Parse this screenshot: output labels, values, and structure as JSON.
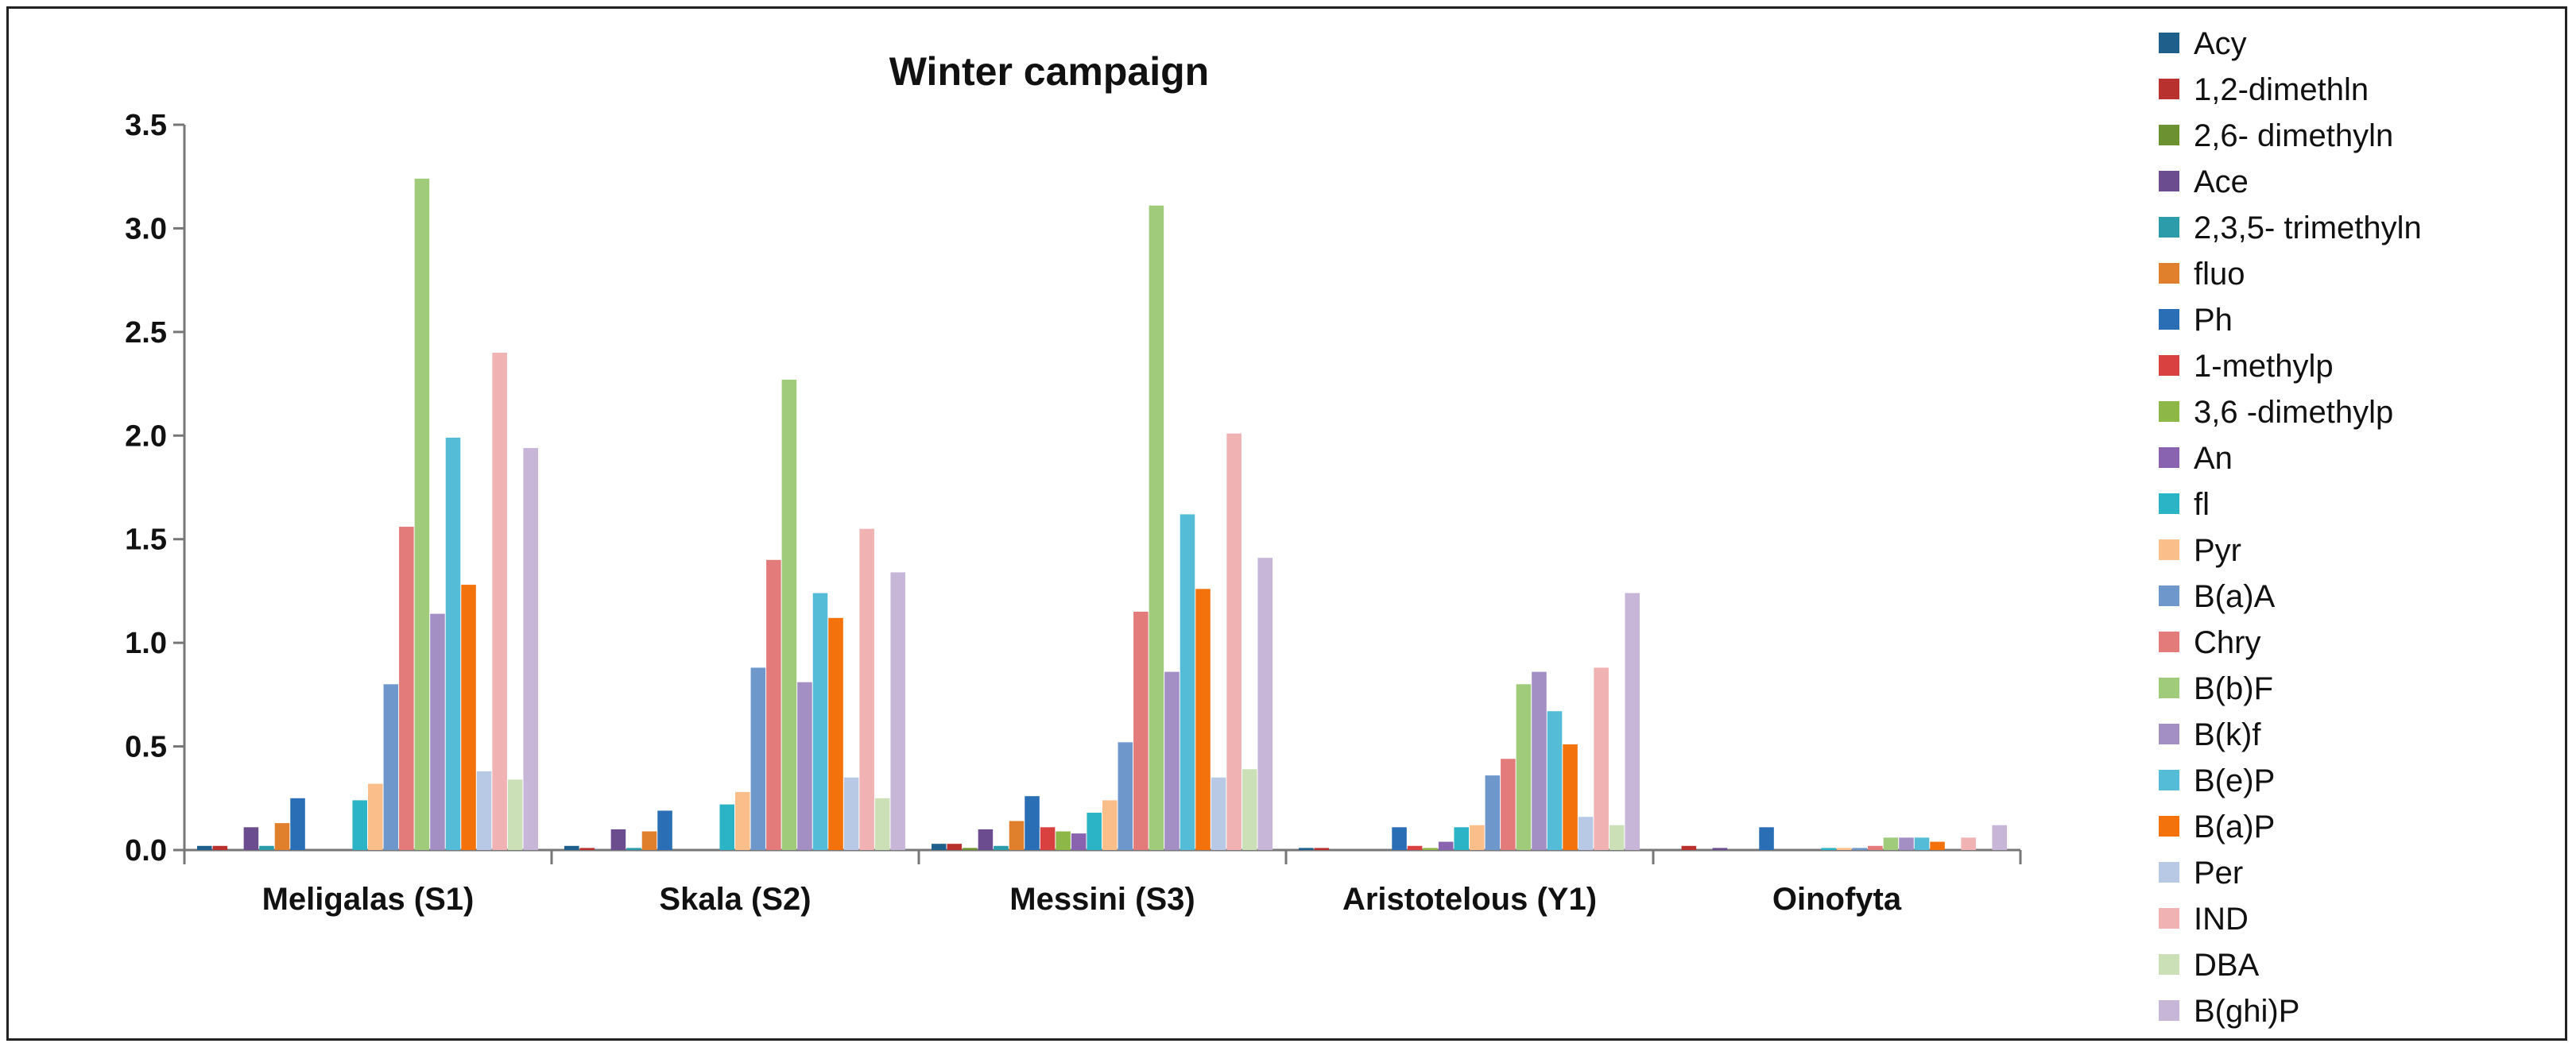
{
  "chart_data": {
    "type": "bar",
    "title": "Winter campaign",
    "xlabel": "",
    "ylabel": "",
    "ylim": [
      0,
      3.5
    ],
    "yticks": [
      "0.0",
      "0.5",
      "1.0",
      "1.5",
      "2.0",
      "2.5",
      "3.0",
      "3.5"
    ],
    "grid": false,
    "legend_position": "right",
    "categories": [
      "Meligalas (S1)",
      "Skala (S2)",
      "Messini (S3)",
      "Aristotelous (Y1)",
      "Oinofyta"
    ],
    "series": [
      {
        "name": "Acy",
        "color": "#1F5F8B",
        "values": [
          0.02,
          0.02,
          0.03,
          0.01,
          0.0
        ]
      },
      {
        "name": "1,2-dimethln",
        "color": "#B8312F",
        "values": [
          0.02,
          0.01,
          0.03,
          0.01,
          0.02
        ]
      },
      {
        "name": "2,6- dimethyln",
        "color": "#6B9130",
        "values": [
          0.0,
          0.0,
          0.01,
          0.0,
          0.0
        ]
      },
      {
        "name": "Ace",
        "color": "#6A4C8F",
        "values": [
          0.11,
          0.1,
          0.1,
          0.0,
          0.01
        ]
      },
      {
        "name": "2,3,5- trimethyln",
        "color": "#2C9BAA",
        "values": [
          0.02,
          0.01,
          0.02,
          0.0,
          0.0
        ]
      },
      {
        "name": "fluo",
        "color": "#E07F2C",
        "values": [
          0.13,
          0.09,
          0.14,
          0.0,
          0.0
        ]
      },
      {
        "name": "Ph",
        "color": "#2A6EB5",
        "values": [
          0.25,
          0.19,
          0.26,
          0.11,
          0.11
        ]
      },
      {
        "name": "1-methylp",
        "color": "#D94040",
        "values": [
          0.0,
          0.0,
          0.11,
          0.02,
          0.0
        ]
      },
      {
        "name": "3,6 -dimethylp",
        "color": "#8DB848",
        "values": [
          0.0,
          0.0,
          0.09,
          0.01,
          0.0
        ]
      },
      {
        "name": "An",
        "color": "#8A63B0",
        "values": [
          0.0,
          0.0,
          0.08,
          0.04,
          0.0
        ]
      },
      {
        "name": "fl",
        "color": "#2BB3C6",
        "values": [
          0.24,
          0.22,
          0.18,
          0.11,
          0.01
        ]
      },
      {
        "name": "Pyr",
        "color": "#F9BE8A",
        "values": [
          0.32,
          0.28,
          0.24,
          0.12,
          0.01
        ]
      },
      {
        "name": "B(a)A",
        "color": "#6E98CC",
        "values": [
          0.8,
          0.88,
          0.52,
          0.36,
          0.01
        ]
      },
      {
        "name": "Chry",
        "color": "#E27B7A",
        "values": [
          1.56,
          1.4,
          1.15,
          0.44,
          0.02
        ]
      },
      {
        "name": "B(b)F",
        "color": "#9FCB7A",
        "values": [
          3.24,
          2.27,
          3.11,
          0.8,
          0.06
        ]
      },
      {
        "name": "B(k)f",
        "color": "#A48FC4",
        "values": [
          1.14,
          0.81,
          0.86,
          0.86,
          0.06
        ]
      },
      {
        "name": "B(e)P",
        "color": "#54BCD6",
        "values": [
          1.99,
          1.24,
          1.62,
          0.67,
          0.06
        ]
      },
      {
        "name": "B(a)P",
        "color": "#F4720C",
        "values": [
          1.28,
          1.12,
          1.26,
          0.51,
          0.04
        ]
      },
      {
        "name": "Per",
        "color": "#B8C9E5",
        "values": [
          0.38,
          0.35,
          0.35,
          0.16,
          0.0
        ]
      },
      {
        "name": "IND",
        "color": "#F0B2B2",
        "values": [
          2.4,
          1.55,
          2.01,
          0.88,
          0.06
        ]
      },
      {
        "name": "DBA",
        "color": "#CCE0B8",
        "values": [
          0.34,
          0.25,
          0.39,
          0.12,
          0.0
        ]
      },
      {
        "name": "B(ghi)P",
        "color": "#C8B6D8",
        "values": [
          1.94,
          1.34,
          1.41,
          1.24,
          0.12
        ]
      }
    ]
  }
}
